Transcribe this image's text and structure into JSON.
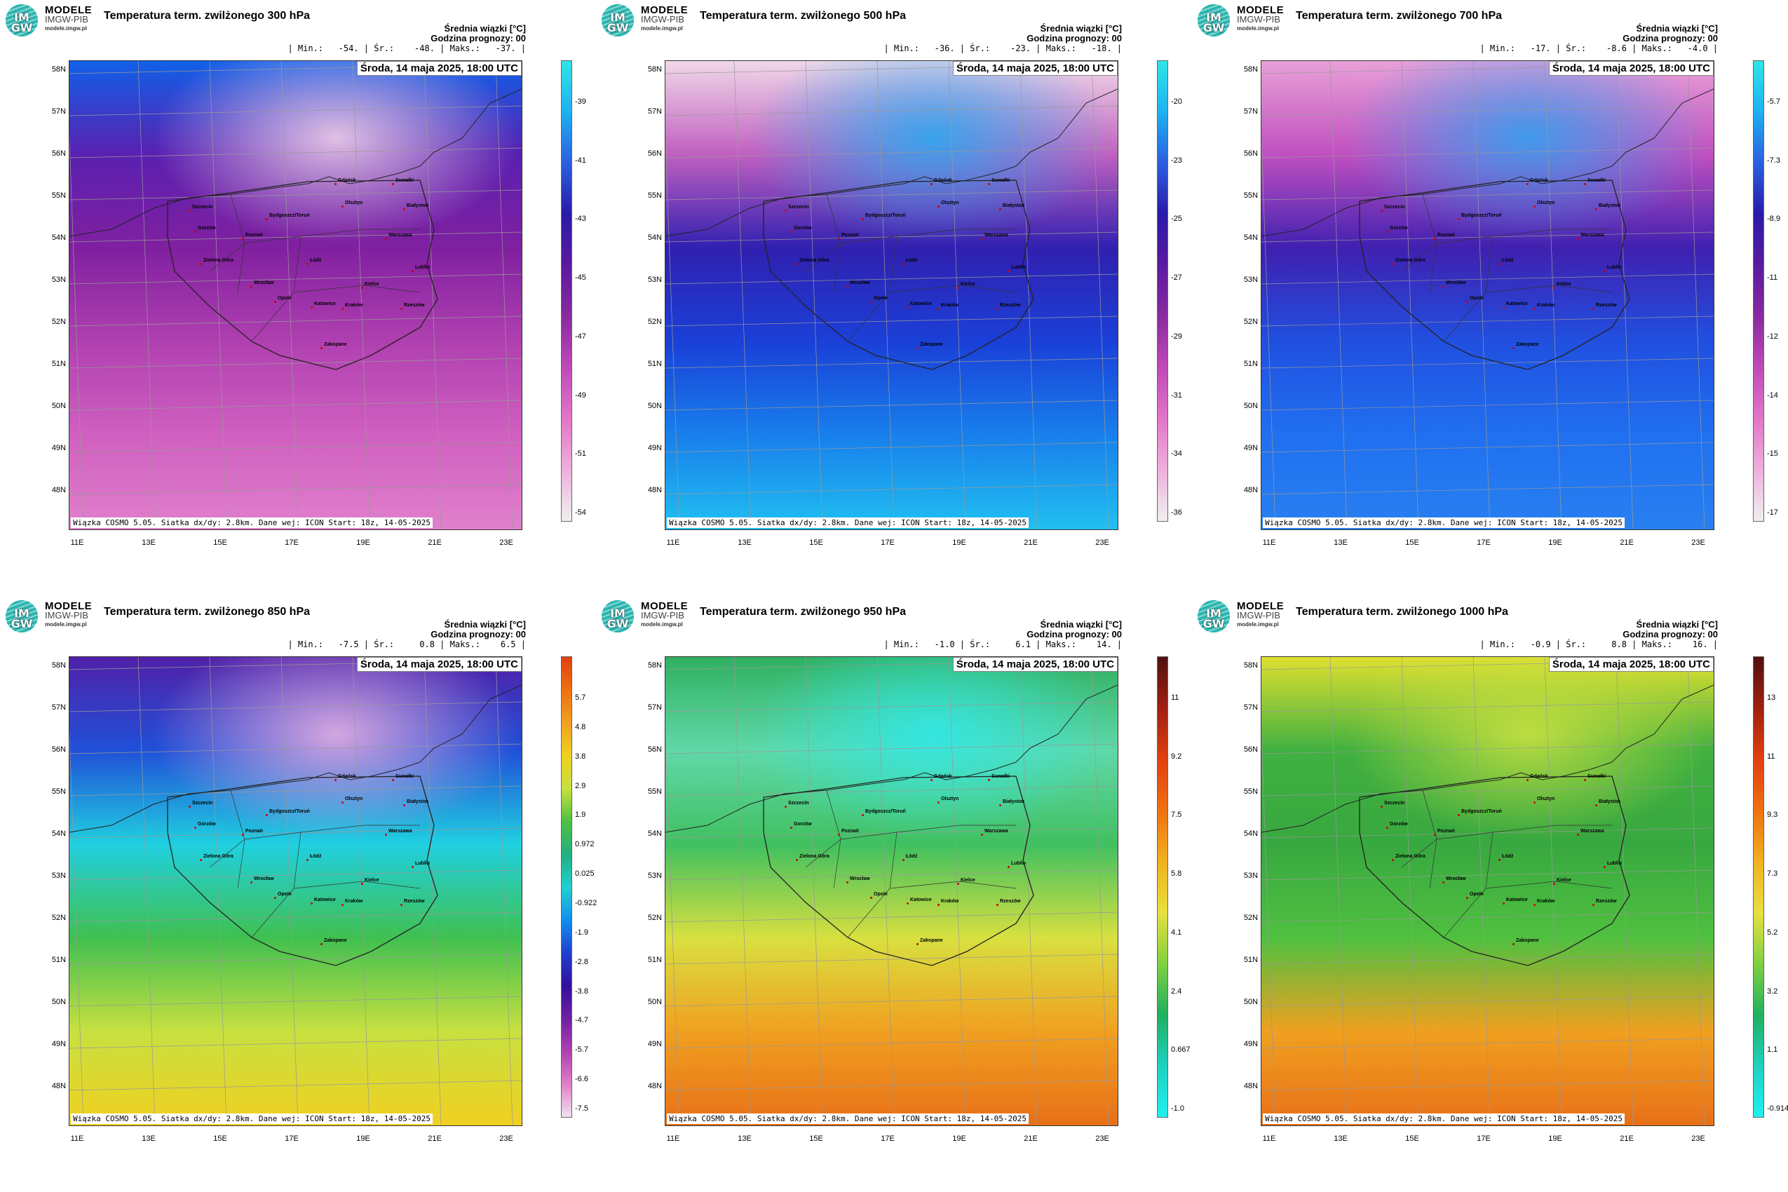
{
  "panels": [
    {
      "title": "Temperatura term. zwilżonego 300 hPa",
      "avg_label": "Średnia wiązki [°C]",
      "forecast_hour": "Godzina prognozy: 00",
      "stats": "| Min.:   -54. | Śr.:    -48. | Maks.:   -37. |",
      "date": "Środa, 14 maja 2025, 18:00 UTC",
      "footer": "Wiązka COSMO 5.05. Siatka dx/dy: 2.8km. Dane wej: ICON Start: 18z, 14-05-2025",
      "colorbar_ticks": [
        "-39",
        "-41",
        "-43",
        "-45",
        "-47",
        "-49",
        "-51",
        "-54"
      ],
      "colorbar_colors": [
        "#2ee6e6",
        "#1fb1f2",
        "#2a5fe0",
        "#2a1aa8",
        "#5a1aa0",
        "#8a2aa0",
        "#c04ab8",
        "#e276c8",
        "#eeb0dc",
        "#f0f0f0"
      ],
      "field_colors": [
        "#1060e8",
        "#5a20b0",
        "#8020a0",
        "#b040b0",
        "#d060c0",
        "#e080cc"
      ],
      "accent_colors": [
        "#f0d0e8",
        "#e8e8f0"
      ]
    },
    {
      "title": "Temperatura term. zwilżonego 500 hPa",
      "avg_label": "Średnia wiązki [°C]",
      "forecast_hour": "Godzina prognozy: 00",
      "stats": "| Min.:   -36. | Śr.:    -23. | Maks.:   -18. |",
      "date": "Środa, 14 maja 2025, 18:00 UTC",
      "footer": "Wiązka COSMO 5.05. Siatka dx/dy: 2.8km. Dane wej: ICON Start: 18z, 14-05-2025",
      "colorbar_ticks": [
        "-20",
        "-23",
        "-25",
        "-27",
        "-29",
        "-31",
        "-34",
        "-36"
      ],
      "colorbar_colors": [
        "#2ee6e6",
        "#1fb1f2",
        "#2a5fe0",
        "#2a1aa8",
        "#5a1aa0",
        "#8a2aa0",
        "#c04ab8",
        "#e276c8",
        "#eeb0dc",
        "#f0f0f0"
      ],
      "field_colors": [
        "#f0d8e8",
        "#c060c0",
        "#3020b0",
        "#1a40d8",
        "#1880ec",
        "#20c0f0"
      ],
      "accent_colors": [
        "#28a8f0",
        "#2050e0"
      ]
    },
    {
      "title": "Temperatura term. zwilżonego 700 hPa",
      "avg_label": "Średnia wiązki [°C]",
      "forecast_hour": "Godzina prognozy: 00",
      "stats": "| Min.:   -17. | Śr.:    -8.6 | Maks.:   -4.0 |",
      "date": "Środa, 14 maja 2025, 18:00 UTC",
      "footer": "Wiązka COSMO 5.05. Siatka dx/dy: 2.8km. Dane wej: ICON Start: 18z, 14-05-2025",
      "colorbar_ticks": [
        "-5.7",
        "-7.3",
        "-8.9",
        "-11",
        "-12",
        "-14",
        "-15",
        "-17"
      ],
      "colorbar_colors": [
        "#2ee6e6",
        "#1fb1f2",
        "#2a5fe0",
        "#2a1aa8",
        "#5a1aa0",
        "#8a2aa0",
        "#c04ab8",
        "#e276c8",
        "#eeb0dc",
        "#f0f0f0"
      ],
      "field_colors": [
        "#e8a0d8",
        "#c050c0",
        "#4020b0",
        "#2050e0",
        "#2070f0",
        "#2880f0"
      ],
      "accent_colors": [
        "#30a0f0",
        "#2060e8"
      ]
    },
    {
      "title": "Temperatura term. zwilżonego 850 hPa",
      "avg_label": "Średnia wiązki [°C]",
      "forecast_hour": "Godzina prognozy: 00",
      "stats": "| Min.:   -7.5 | Śr.:     0.8 | Maks.:    6.5 |",
      "date": "Środa, 14 maja 2025, 18:00 UTC",
      "footer": "Wiązka COSMO 5.05. Siatka dx/dy: 2.8km. Dane wej: ICON Start: 18z, 14-05-2025",
      "colorbar_ticks": [
        "5.7",
        "4.8",
        "3.8",
        "2.9",
        "1.9",
        "0.972",
        "0.025",
        "-0.922",
        "-1.9",
        "-2.8",
        "-3.8",
        "-4.7",
        "-5.7",
        "-6.6",
        "-7.5"
      ],
      "colorbar_colors": [
        "#e04010",
        "#f07010",
        "#f0a020",
        "#f0d020",
        "#c8e040",
        "#50c040",
        "#20b080",
        "#20d0d0",
        "#1090f0",
        "#2040d0",
        "#3010a0",
        "#7020a0",
        "#b040b0",
        "#e080c8",
        "#f0e0f0"
      ],
      "field_colors": [
        "#5020a8",
        "#2050d8",
        "#20d0e0",
        "#40c050",
        "#c8e040",
        "#f0d020"
      ],
      "accent_colors": [
        "#e8b0e0",
        "#f0c020"
      ]
    },
    {
      "title": "Temperatura term. zwilżonego 950 hPa",
      "avg_label": "Średnia wiązki [°C]",
      "forecast_hour": "Godzina prognozy: 00",
      "stats": "| Min.:   -1.0 | Śr.:     6.1 | Maks.:    14. |",
      "date": "Środa, 14 maja 2025, 18:00 UTC",
      "footer": "Wiązka COSMO 5.05. Siatka dx/dy: 2.8km. Dane wej: ICON Start: 18z, 14-05-2025",
      "colorbar_ticks": [
        "11",
        "9.2",
        "7.5",
        "5.8",
        "4.1",
        "2.4",
        "0.667",
        "-1.0"
      ],
      "colorbar_colors": [
        "#501010",
        "#a02010",
        "#e04010",
        "#f07010",
        "#f0b020",
        "#e8e040",
        "#80d040",
        "#20b060",
        "#20d0c0",
        "#20f0f0"
      ],
      "field_colors": [
        "#30b060",
        "#60d8a8",
        "#40c060",
        "#d8e040",
        "#f0a020",
        "#e87018"
      ],
      "accent_colors": [
        "#30e8e8",
        "#f08020"
      ]
    },
    {
      "title": "Temperatura term. zwilżonego 1000 hPa",
      "avg_label": "Średnia wiązki [°C]",
      "forecast_hour": "Godzina prognozy: 00",
      "stats": "| Min.:   -0.9 | Śr.:     8.8 | Maks.:    16. |",
      "date": "Środa, 14 maja 2025, 18:00 UTC",
      "footer": "Wiązka COSMO 5.05. Siatka dx/dy: 2.8km. Dane wej: ICON Start: 18z, 14-05-2025",
      "colorbar_ticks": [
        "13",
        "11",
        "9.3",
        "7.3",
        "5.2",
        "3.2",
        "1.1",
        "-0.914"
      ],
      "colorbar_colors": [
        "#501010",
        "#a02010",
        "#e04010",
        "#f07010",
        "#f0b020",
        "#e8e040",
        "#80d040",
        "#20b060",
        "#20d0c0",
        "#20f0f0"
      ],
      "field_colors": [
        "#e0e030",
        "#40b040",
        "#38a840",
        "#50c040",
        "#f0a020",
        "#e87018"
      ],
      "accent_colors": [
        "#c8e040",
        "#f09020"
      ]
    }
  ],
  "logo": {
    "line1": "MODELE",
    "line2": "IMGW-PIB",
    "line3": "modele.imgw.pl",
    "mark": "IM GW"
  },
  "lat_labels": [
    "58N",
    "57N",
    "56N",
    "55N",
    "54N",
    "53N",
    "52N",
    "51N",
    "50N",
    "49N",
    "48N"
  ],
  "lon_labels": [
    "11E",
    "13E",
    "15E",
    "17E",
    "19E",
    "21E",
    "23E"
  ],
  "cities": [
    "Gdańsk",
    "Olsztyn",
    "Suwałki",
    "Białystok",
    "Szczecin",
    "Bydgoszcz/Toruń",
    "Gorzów",
    "Poznań",
    "Warszawa",
    "Zielona Góra",
    "Łódź",
    "Lublin",
    "Wrocław",
    "Kielce",
    "Opole",
    "Katowice",
    "Kraków",
    "Rzeszów",
    "Zakopane"
  ]
}
